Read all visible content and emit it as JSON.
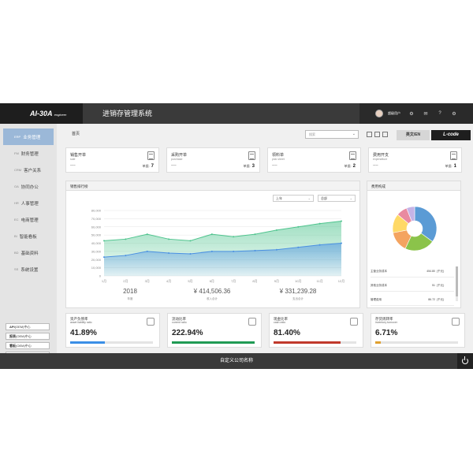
{
  "app": {
    "logo_main": "AI-30A",
    "logo_sub": "engineer",
    "title": "进销存管理系统",
    "user_name": "超级用户",
    "lang_label": "英文/EN",
    "lcode_label": "L-code",
    "footer_company": "自定义公司名称"
  },
  "sidebar": {
    "items": [
      {
        "code": "ERP",
        "label": "业务管理",
        "active": true
      },
      {
        "code": "FM",
        "label": "财务管理"
      },
      {
        "code": "CRM",
        "label": "客户关系"
      },
      {
        "code": "OA",
        "label": "协同办公"
      },
      {
        "code": "HR",
        "label": "人事管理"
      },
      {
        "code": "EC",
        "label": "电商管理"
      },
      {
        "code": "BI",
        "label": "智能看板"
      },
      {
        "code": "BD",
        "label": "基础资料"
      },
      {
        "code": "SS",
        "label": "系统设置"
      }
    ],
    "centers": [
      {
        "strong": "API",
        "rest": "(OEM)中心"
      },
      {
        "strong": "报表",
        "rest": "(OEM)中心"
      },
      {
        "strong": "看板",
        "rest": "(OEM)中心"
      },
      {
        "strong": "单据",
        "rest": "(OEM)中心"
      }
    ]
  },
  "main": {
    "breadcrumb": "首页",
    "search_placeholder": "搜索",
    "quick_cards": [
      {
        "title": "销售开单",
        "sub": "sale",
        "dash": "----",
        "count_label": "单据:",
        "count": "7"
      },
      {
        "title": "采购开单",
        "sub": "purchase",
        "dash": "----",
        "count_label": "单据:",
        "count": "3"
      },
      {
        "title": "领料单",
        "sub": "pick sheet",
        "dash": "----",
        "count_label": "单据:",
        "count": "2"
      },
      {
        "title": "费用开支",
        "sub": "expenditure",
        "dash": "----",
        "count_label": "单据:",
        "count": "1"
      }
    ],
    "sales_panel": {
      "title": "销售排行榜",
      "select_period": "上年",
      "select_scope": "总部"
    },
    "stats": [
      {
        "value": "2018",
        "label": "年度"
      },
      {
        "value": "¥ 414,506.36",
        "label": "收入合计"
      },
      {
        "value": "¥ 331,239.28",
        "label": "支出合计"
      }
    ],
    "expense_panel": {
      "title": "费用构成",
      "rows": [
        {
          "key": "主营业务成本",
          "value": "454.80",
          "unit": "(千元)"
        },
        {
          "key": "其他业务成本",
          "value": "51",
          "unit": "(千元)"
        },
        {
          "key": "管理费用",
          "value": "86.72",
          "unit": "(千元)"
        }
      ]
    },
    "ratios": [
      {
        "title": "资产负债率",
        "sub": "asset liability ratio",
        "value": "41.89%",
        "fill": 0.42,
        "color": "#3a8ee6"
      },
      {
        "title": "流动比率",
        "sub": "current ratio",
        "value": "222.94%",
        "fill": 1.0,
        "color": "#1f9a54"
      },
      {
        "title": "现金比率",
        "sub": "cash ratio",
        "value": "81.40%",
        "fill": 0.81,
        "color": "#c0392b"
      },
      {
        "title": "存货周转率",
        "sub": "inventory turnover",
        "value": "6.71%",
        "fill": 0.07,
        "color": "#e0a030"
      }
    ]
  },
  "chart_data": [
    {
      "type": "area",
      "categories": [
        "1月",
        "2月",
        "3月",
        "4月",
        "5月",
        "6月",
        "7月",
        "8月",
        "9月",
        "10月",
        "11月",
        "12月"
      ],
      "series": [
        {
          "values": [
            43000,
            45000,
            51000,
            45000,
            43000,
            51000,
            48000,
            51000,
            56000,
            60000,
            64000,
            67000
          ],
          "color": "#4fc48e"
        },
        {
          "values": [
            23000,
            25000,
            30000,
            28000,
            27000,
            30000,
            30000,
            31000,
            32000,
            35000,
            38000,
            40000
          ],
          "color": "#4a90e2"
        }
      ],
      "yticks": [
        "0",
        "10,000",
        "20,000",
        "30,000",
        "40,000",
        "50,000",
        "60,000",
        "70,000",
        "80,000"
      ],
      "ylim": [
        0,
        80000
      ],
      "grid": true
    },
    {
      "type": "pie",
      "values": [
        35,
        22,
        15,
        14,
        8,
        6
      ],
      "colors": [
        "#5b9bd5",
        "#8bc34a",
        "#f4a460",
        "#ffd966",
        "#e98aa0",
        "#c5b3e6"
      ]
    }
  ]
}
